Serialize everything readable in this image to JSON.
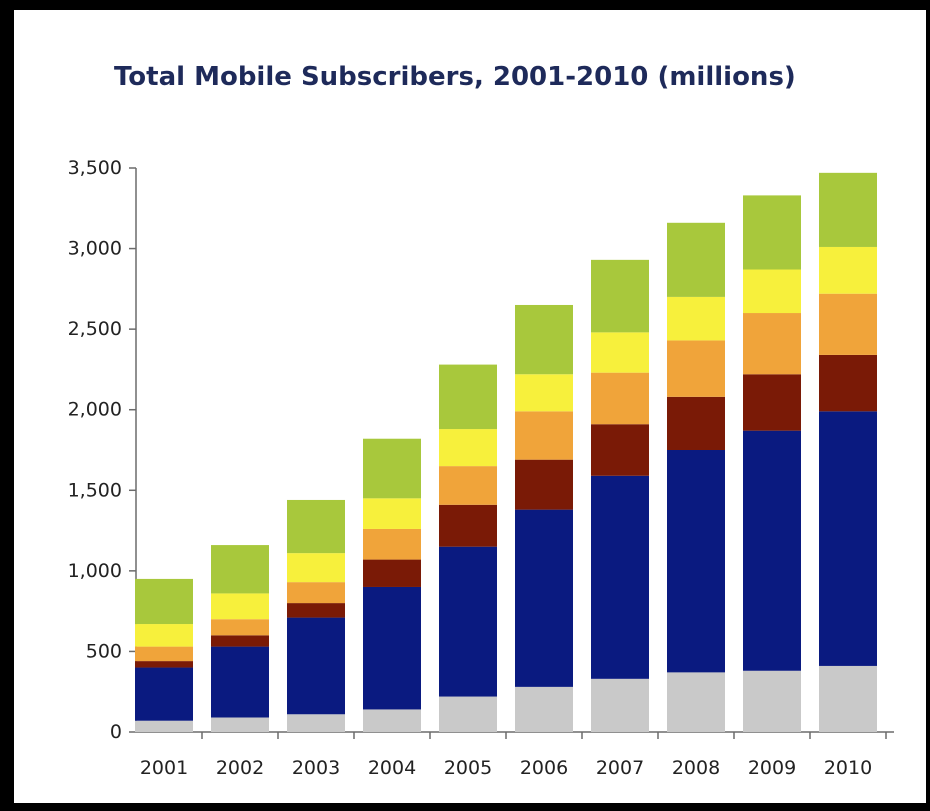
{
  "chart_data": {
    "type": "bar",
    "stacked": true,
    "title": "Total Mobile Subscribers, 2001-2010 (millions)",
    "xlabel": "",
    "ylabel": "",
    "categories": [
      "2001",
      "2002",
      "2003",
      "2004",
      "2005",
      "2006",
      "2007",
      "2008",
      "2009",
      "2010"
    ],
    "ylim": [
      0,
      3500
    ],
    "yticks": [
      0,
      500,
      1000,
      1500,
      2000,
      2500,
      3000,
      3500
    ],
    "ytick_labels": [
      "0",
      "500",
      "1,000",
      "1,500",
      "2,000",
      "2,500",
      "3,000",
      "3,500"
    ],
    "grid": false,
    "legend": "none",
    "series": [
      {
        "color": "#c9c9c9",
        "values": [
          70,
          90,
          110,
          140,
          220,
          280,
          330,
          370,
          380,
          410
        ]
      },
      {
        "color": "#0a1a80",
        "values": [
          330,
          440,
          600,
          760,
          930,
          1100,
          1260,
          1380,
          1490,
          1580
        ]
      },
      {
        "color": "#7a1a06",
        "values": [
          40,
          70,
          90,
          170,
          260,
          310,
          320,
          330,
          350,
          350
        ]
      },
      {
        "color": "#f0a43a",
        "values": [
          90,
          100,
          130,
          190,
          240,
          300,
          320,
          350,
          380,
          380
        ]
      },
      {
        "color": "#f7f03c",
        "values": [
          140,
          160,
          180,
          190,
          230,
          230,
          250,
          270,
          270,
          290
        ]
      },
      {
        "color": "#a8c83c",
        "values": [
          280,
          300,
          330,
          370,
          400,
          430,
          450,
          460,
          460,
          460
        ]
      }
    ]
  }
}
